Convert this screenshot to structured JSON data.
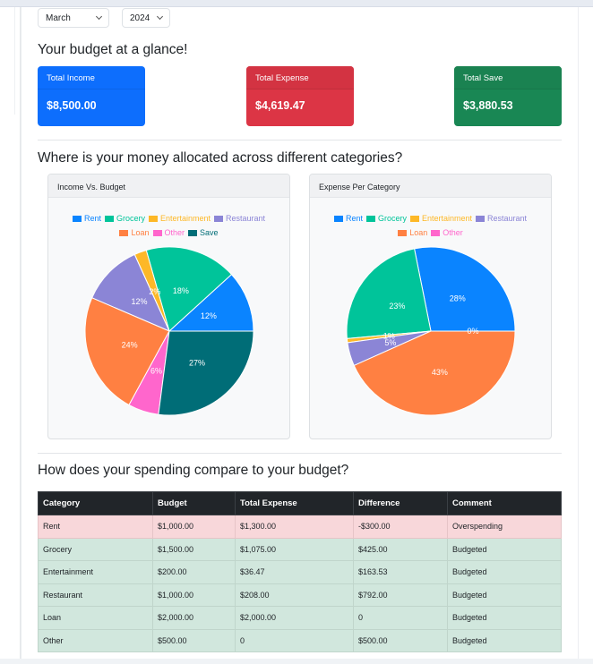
{
  "filters": {
    "month": "March",
    "year": "2024"
  },
  "headings": {
    "glance": "Your budget at a glance!",
    "allocation": "Where is your money allocated across different categories?",
    "compare": "How does your spending compare to your budget?"
  },
  "cards": [
    {
      "label": "Total Income",
      "value": "$8,500.00",
      "color": "#0d6efd"
    },
    {
      "label": "Total Expense",
      "value": "$4,619.47",
      "color": "#dc3545"
    },
    {
      "label": "Total Save",
      "value": "$3,880.53",
      "color": "#198754"
    }
  ],
  "colors": {
    "Rent": "#0a84ff",
    "Grocery": "#00c49a",
    "Entertainment": "#fdb827",
    "Restaurant": "#8b85d6",
    "Loan": "#ff8042",
    "Other": "#ff66cc",
    "Save": "#006d77"
  },
  "chart_data": [
    {
      "type": "pie",
      "title": "Income Vs. Budget",
      "categories": [
        "Rent",
        "Grocery",
        "Entertainment",
        "Restaurant",
        "Loan",
        "Other",
        "Save"
      ],
      "values": [
        1000,
        1500,
        200,
        1000,
        2000,
        500,
        2300
      ],
      "labels": [
        "12%",
        "18%",
        "2%",
        "12%",
        "24%",
        "6%",
        "27%"
      ],
      "legend_position": "top"
    },
    {
      "type": "pie",
      "title": "Expense Per Category",
      "categories": [
        "Rent",
        "Grocery",
        "Entertainment",
        "Restaurant",
        "Loan",
        "Other"
      ],
      "values": [
        1300,
        1075,
        36.47,
        208,
        2000,
        0
      ],
      "labels": [
        "28%",
        "23%",
        "1%",
        "5%",
        "43%",
        "0%"
      ],
      "legend_position": "top"
    }
  ],
  "table": {
    "columns": [
      "Category",
      "Budget",
      "Total Expense",
      "Difference",
      "Comment"
    ],
    "rows": [
      {
        "status": "over",
        "cells": [
          "Rent",
          "$1,000.00",
          "$1,300.00",
          "-$300.00",
          "Overspending"
        ]
      },
      {
        "status": "ok",
        "cells": [
          "Grocery",
          "$1,500.00",
          "$1,075.00",
          "$425.00",
          "Budgeted"
        ]
      },
      {
        "status": "ok",
        "cells": [
          "Entertainment",
          "$200.00",
          "$36.47",
          "$163.53",
          "Budgeted"
        ]
      },
      {
        "status": "ok",
        "cells": [
          "Restaurant",
          "$1,000.00",
          "$208.00",
          "$792.00",
          "Budgeted"
        ]
      },
      {
        "status": "ok",
        "cells": [
          "Loan",
          "$2,000.00",
          "$2,000.00",
          "0",
          "Budgeted"
        ]
      },
      {
        "status": "ok",
        "cells": [
          "Other",
          "$500.00",
          "0",
          "$500.00",
          "Budgeted"
        ]
      }
    ]
  }
}
